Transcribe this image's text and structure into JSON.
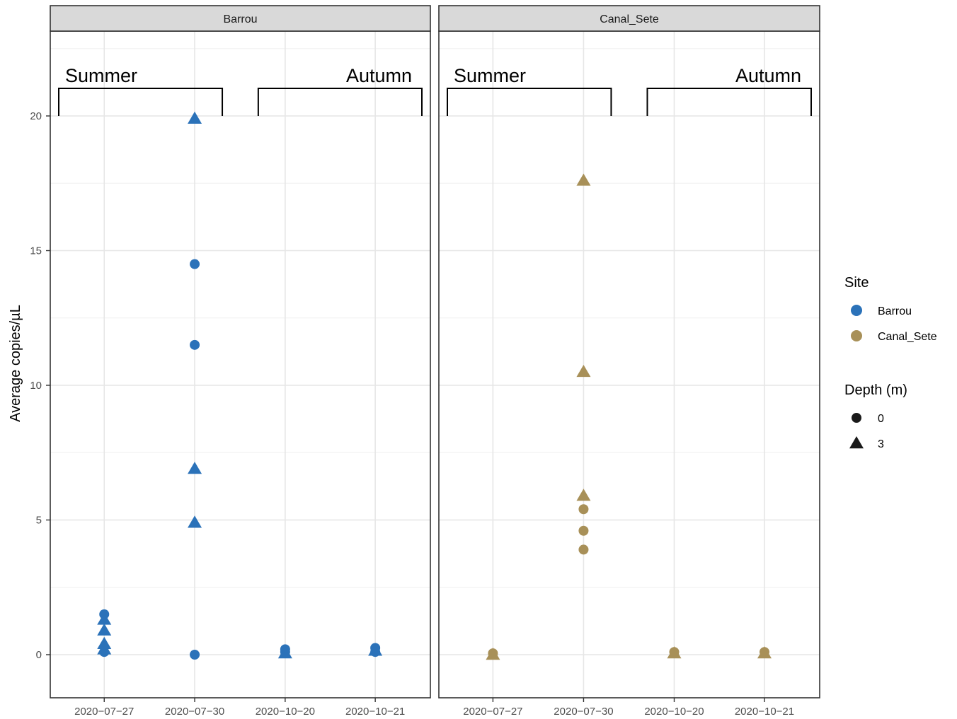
{
  "chart_data": {
    "type": "scatter",
    "ylabel": "Average copies/µL",
    "ylim": [
      -1.6,
      23.3
    ],
    "yticks": [
      0,
      5,
      10,
      15,
      20
    ],
    "categories": [
      "2020−07−27",
      "2020−07−30",
      "2020−10−20",
      "2020−10−21"
    ],
    "grid": true,
    "legend_position": "right",
    "annotations": {
      "summer": "Summer",
      "autumn": "Autumn",
      "bracket_y": 20
    },
    "legend": {
      "color_title": "Site",
      "shape_title": "Depth (m)",
      "sites": [
        {
          "name": "Barrou",
          "color": "#2b72b9"
        },
        {
          "name": "Canal_Sete",
          "color": "#a89058"
        }
      ],
      "depths": [
        {
          "name": "0",
          "shape": "circle"
        },
        {
          "name": "3",
          "shape": "triangle"
        }
      ]
    },
    "facets": [
      {
        "name": "Barrou",
        "color": "#2b72b9",
        "points": [
          {
            "x": "2020−07−27",
            "y": 1.5,
            "depth": "0"
          },
          {
            "x": "2020−07−27",
            "y": 0.1,
            "depth": "0"
          },
          {
            "x": "2020−07−27",
            "y": 1.3,
            "depth": "3"
          },
          {
            "x": "2020−07−27",
            "y": 0.9,
            "depth": "3"
          },
          {
            "x": "2020−07−27",
            "y": 0.4,
            "depth": "3"
          },
          {
            "x": "2020−07−27",
            "y": 0.2,
            "depth": "3"
          },
          {
            "x": "2020−07−30",
            "y": 14.5,
            "depth": "0"
          },
          {
            "x": "2020−07−30",
            "y": 11.5,
            "depth": "0"
          },
          {
            "x": "2020−07−30",
            "y": 0.0,
            "depth": "0"
          },
          {
            "x": "2020−07−30",
            "y": 19.9,
            "depth": "3"
          },
          {
            "x": "2020−07−30",
            "y": 6.9,
            "depth": "3"
          },
          {
            "x": "2020−07−30",
            "y": 4.9,
            "depth": "3"
          },
          {
            "x": "2020−10−20",
            "y": 0.2,
            "depth": "0"
          },
          {
            "x": "2020−10−20",
            "y": 0.1,
            "depth": "0"
          },
          {
            "x": "2020−10−20",
            "y": 0.05,
            "depth": "3"
          },
          {
            "x": "2020−10−21",
            "y": 0.25,
            "depth": "0"
          },
          {
            "x": "2020−10−21",
            "y": 0.1,
            "depth": "0"
          },
          {
            "x": "2020−10−21",
            "y": 0.15,
            "depth": "3"
          }
        ]
      },
      {
        "name": "Canal_Sete",
        "color": "#a89058",
        "points": [
          {
            "x": "2020−07−27",
            "y": 0.05,
            "depth": "0"
          },
          {
            "x": "2020−07−27",
            "y": 0.0,
            "depth": "3"
          },
          {
            "x": "2020−07−30",
            "y": 5.4,
            "depth": "0"
          },
          {
            "x": "2020−07−30",
            "y": 4.6,
            "depth": "0"
          },
          {
            "x": "2020−07−30",
            "y": 3.9,
            "depth": "0"
          },
          {
            "x": "2020−07−30",
            "y": 17.6,
            "depth": "3"
          },
          {
            "x": "2020−07−30",
            "y": 10.5,
            "depth": "3"
          },
          {
            "x": "2020−07−30",
            "y": 5.9,
            "depth": "3"
          },
          {
            "x": "2020−10−20",
            "y": 0.1,
            "depth": "0"
          },
          {
            "x": "2020−10−20",
            "y": 0.05,
            "depth": "3"
          },
          {
            "x": "2020−10−21",
            "y": 0.1,
            "depth": "0"
          },
          {
            "x": "2020−10−21",
            "y": 0.05,
            "depth": "3"
          }
        ]
      }
    ]
  }
}
